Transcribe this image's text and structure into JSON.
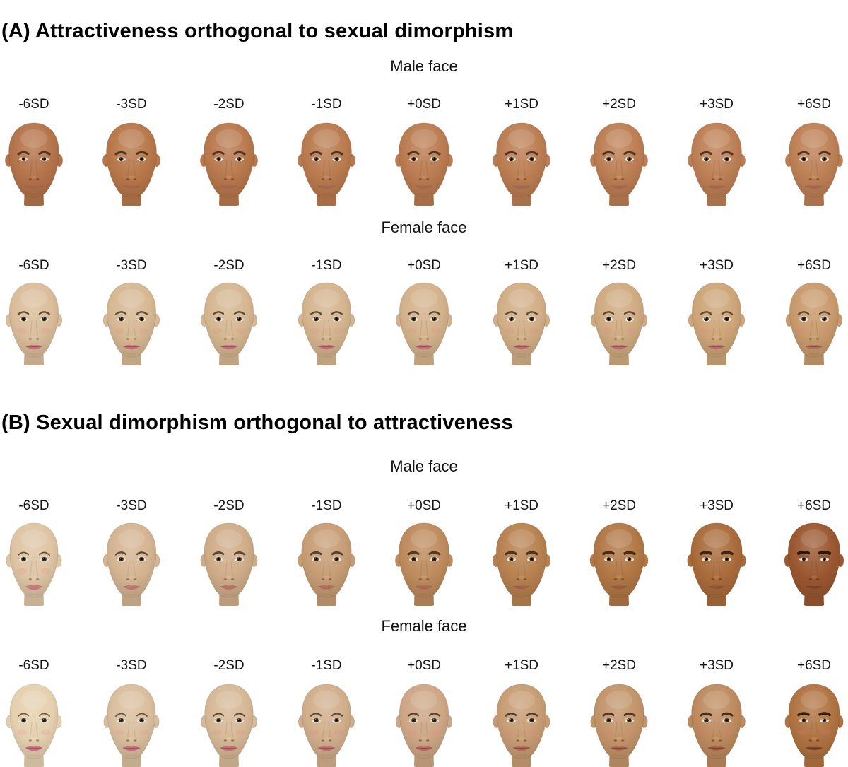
{
  "colors": {
    "background": "#ffffff",
    "text": "#000000"
  },
  "panels": [
    {
      "id": "A",
      "title": "(A) Attractiveness orthogonal to sexual dimorphism",
      "dimension": "attractiveness",
      "rows": [
        {
          "label": "Male face",
          "sex": "male",
          "faces": [
            {
              "sd": "-6SD",
              "value": -6,
              "skin": "#b4734a",
              "lip": "#a8644d",
              "brow": "#46301f"
            },
            {
              "sd": "-3SD",
              "value": -3,
              "skin": "#b77749",
              "lip": "#a8644d",
              "brow": "#46301f"
            },
            {
              "sd": "-2SD",
              "value": -2,
              "skin": "#b8784c",
              "lip": "#a8644d",
              "brow": "#46301f"
            },
            {
              "sd": "-1SD",
              "value": -1,
              "skin": "#b97a4e",
              "lip": "#a8644d",
              "brow": "#46301f"
            },
            {
              "sd": "+0SD",
              "value": 0,
              "skin": "#ba7b50",
              "lip": "#a8644d",
              "brow": "#46301f"
            },
            {
              "sd": "+1SD",
              "value": 1,
              "skin": "#bb7d52",
              "lip": "#a8644d",
              "brow": "#46301f"
            },
            {
              "sd": "+2SD",
              "value": 2,
              "skin": "#bc7e53",
              "lip": "#a8644d",
              "brow": "#46301f"
            },
            {
              "sd": "+3SD",
              "value": 3,
              "skin": "#bd7f54",
              "lip": "#a8644d",
              "brow": "#46301f"
            },
            {
              "sd": "+6SD",
              "value": 6,
              "skin": "#bd8055",
              "lip": "#a8644d",
              "brow": "#46301f"
            }
          ]
        },
        {
          "label": "Female face",
          "sex": "female",
          "faces": [
            {
              "sd": "-6SD",
              "value": -6,
              "skin": "#dabd9a",
              "lip": "#c5677b",
              "brow": "#57422f"
            },
            {
              "sd": "-3SD",
              "value": -3,
              "skin": "#d6b892",
              "lip": "#c5677b",
              "brow": "#57422f"
            },
            {
              "sd": "-2SD",
              "value": -2,
              "skin": "#d5b690",
              "lip": "#c4677a",
              "brow": "#57422f"
            },
            {
              "sd": "-1SD",
              "value": -1,
              "skin": "#d4b48e",
              "lip": "#c46779",
              "brow": "#57422f"
            },
            {
              "sd": "+0SD",
              "value": 0,
              "skin": "#d3b28b",
              "lip": "#c36778",
              "brow": "#57422f"
            },
            {
              "sd": "+1SD",
              "value": 1,
              "skin": "#d1ae86",
              "lip": "#c06774",
              "brow": "#57422f"
            },
            {
              "sd": "+2SD",
              "value": 2,
              "skin": "#cfaa80",
              "lip": "#bd6770",
              "brow": "#57422f"
            },
            {
              "sd": "+3SD",
              "value": 3,
              "skin": "#cda578",
              "lip": "#ba676c",
              "brow": "#57422f"
            },
            {
              "sd": "+6SD",
              "value": 6,
              "skin": "#c89a6c",
              "lip": "#b26a62",
              "brow": "#57422f"
            }
          ]
        }
      ]
    },
    {
      "id": "B",
      "title": "(B) Sexual dimorphism orthogonal to attractiveness",
      "dimension": "dimorphism",
      "rows": [
        {
          "label": "Male face",
          "sex": "male",
          "faces": [
            {
              "sd": "-6SD",
              "value": -6,
              "skin": "#ddc4a3",
              "lip": "#ca6f80",
              "brow": "#5d4833"
            },
            {
              "sd": "-3SD",
              "value": -3,
              "skin": "#d4b492",
              "lip": "#bf6c6f",
              "brow": "#544030"
            },
            {
              "sd": "-2SD",
              "value": -2,
              "skin": "#cfac88",
              "lip": "#b96a66",
              "brow": "#503c2c"
            },
            {
              "sd": "-1SD",
              "value": -1,
              "skin": "#c69c74",
              "lip": "#b1655c",
              "brow": "#4c3827"
            },
            {
              "sd": "+0SD",
              "value": 0,
              "skin": "#bd8b5d",
              "lip": "#a86252",
              "brow": "#463122"
            },
            {
              "sd": "+1SD",
              "value": 1,
              "skin": "#b7814f",
              "lip": "#a05d49",
              "brow": "#402c1e"
            },
            {
              "sd": "+2SD",
              "value": 2,
              "skin": "#b17745",
              "lip": "#985741",
              "brow": "#392619"
            },
            {
              "sd": "+3SD",
              "value": 3,
              "skin": "#a96b3b",
              "lip": "#8e5038",
              "brow": "#312015"
            },
            {
              "sd": "+6SD",
              "value": 6,
              "skin": "#9a5730",
              "lip": "#773f2a",
              "brow": "#1f140c"
            }
          ]
        },
        {
          "label": "Female face",
          "sex": "female",
          "faces": [
            {
              "sd": "-6SD",
              "value": -6,
              "skin": "#e5d0af",
              "lip": "#cf6683",
              "brow": "#62503a"
            },
            {
              "sd": "-3SD",
              "value": -3,
              "skin": "#d9be9d",
              "lip": "#c96879",
              "brow": "#5a4733"
            },
            {
              "sd": "-2SD",
              "value": -2,
              "skin": "#d6b896",
              "lip": "#c46773",
              "brow": "#56432f"
            },
            {
              "sd": "-1SD",
              "value": -1,
              "skin": "#d1ae8b",
              "lip": "#bf676d",
              "brow": "#523e2b"
            },
            {
              "sd": "+0SD",
              "value": 0,
              "skin": "#cda685",
              "lip": "#ba6564",
              "brow": "#4d392a"
            },
            {
              "sd": "+1SD",
              "value": 1,
              "skin": "#c79c74",
              "lip": "#b16156",
              "brow": "#473326"
            },
            {
              "sd": "+2SD",
              "value": 2,
              "skin": "#c2946a",
              "lip": "#a95c4c",
              "brow": "#402d20"
            },
            {
              "sd": "+3SD",
              "value": 3,
              "skin": "#bd8a5e",
              "lip": "#9f5640",
              "brow": "#37251a"
            },
            {
              "sd": "+6SD",
              "value": 6,
              "skin": "#b07342",
              "lip": "#84462e",
              "brow": "#241710"
            }
          ]
        }
      ]
    }
  ]
}
